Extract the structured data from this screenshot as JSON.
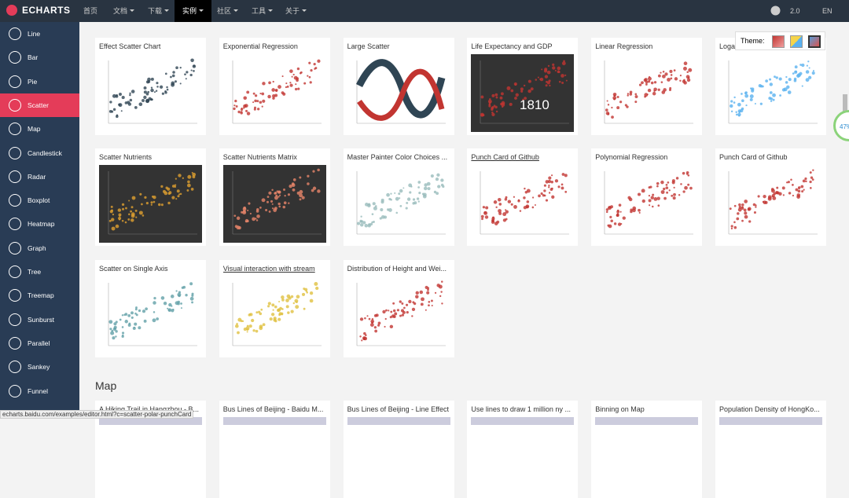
{
  "nav": {
    "logo": "ECHARTS",
    "items": [
      "首页",
      "文档",
      "下载",
      "实例",
      "社区",
      "工具",
      "关于"
    ],
    "version": "2.0",
    "lang": "EN"
  },
  "sidebar": [
    "Line",
    "Bar",
    "Pie",
    "Scatter",
    "Map",
    "Candlestick",
    "Radar",
    "Boxplot",
    "Heatmap",
    "Graph",
    "Tree",
    "Treemap",
    "Sunburst",
    "Parallel",
    "Sankey",
    "Funnel"
  ],
  "theme_label": "Theme:",
  "sections": [
    {
      "cards": [
        "Effect Scatter Chart",
        "Exponential Regression",
        "Large Scatter",
        "Life Expectancy and GDP",
        "Linear Regression",
        "Logarithmic Regression",
        "Scatter Nutrients",
        "Scatter Nutrients Matrix",
        "Master Painter Color Choices ...",
        "Punch Card of Github",
        "Polynomial Regression",
        "Punch Card of Github",
        "Scatter on Single Axis",
        "Visual interaction with stream",
        "Distribution of Height and Wei..."
      ]
    },
    {
      "title": "Map",
      "cards": [
        "A Hiking Trail in Hangzhou - B...",
        "Bus Lines of Beijing - Baidu M...",
        "Bus Lines of Beijing - Line Effect",
        "Use lines to draw 1 million ny ...",
        "Binning on Map",
        "Population Density of HongKo..."
      ]
    }
  ],
  "thumb_text": "1810",
  "progress": "47%",
  "status_url": "echarts.baidu.com/examples/editor.html?c=scatter-polar-punchCard"
}
